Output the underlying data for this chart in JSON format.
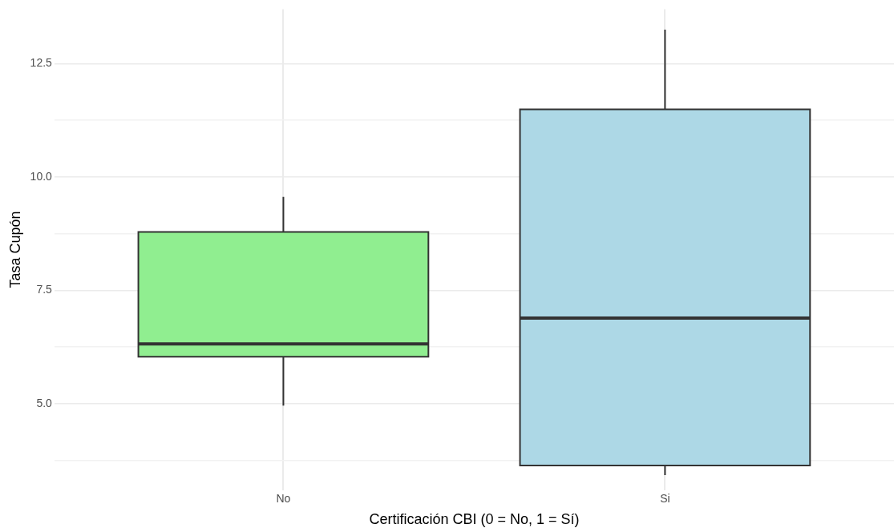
{
  "chart_data": {
    "type": "box",
    "xlabel": "Certificación CBI (0 = No, 1 = Sí)",
    "ylabel": "Tasa Cupón",
    "categories": [
      "No",
      "Si"
    ],
    "colors": [
      "#90ee90",
      "#add8e6"
    ],
    "boxes": [
      {
        "low": 4.96,
        "q1": 6.04,
        "median": 6.32,
        "q3": 8.79,
        "high": 9.56
      },
      {
        "low": 3.43,
        "q1": 3.64,
        "median": 6.89,
        "q3": 11.49,
        "high": 13.25
      }
    ],
    "ylim": [
      3.1,
      13.7
    ],
    "yticks": [
      {
        "value": 3.75,
        "label": null
      },
      {
        "value": 5,
        "label": "5.0"
      },
      {
        "value": 6.25,
        "label": null
      },
      7.5,
      {
        "value": 8.75,
        "label": null
      },
      {
        "value": 10,
        "label": "10.0"
      },
      {
        "value": 11.25,
        "label": null
      },
      12.5
    ],
    "grid": true
  }
}
